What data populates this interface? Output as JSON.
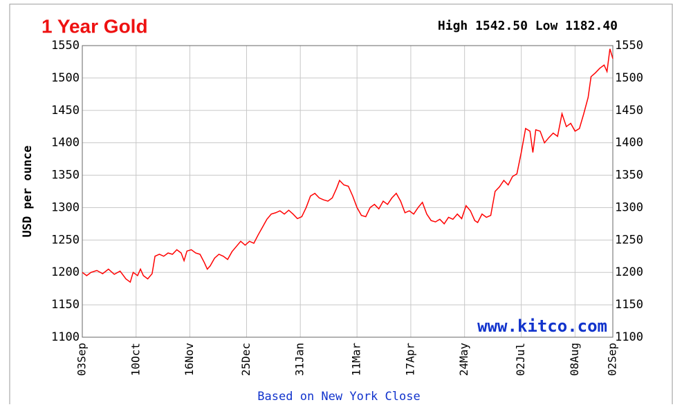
{
  "chart_data": {
    "type": "line",
    "title": "1 Year Gold",
    "stats": "High 1542.50 Low 1182.40",
    "ylabel": "USD per ounce",
    "watermark": "www.kitco.com",
    "xlabel": "Based on New York Close",
    "color": "#ff0000",
    "grid": true,
    "xlim": [
      0,
      365
    ],
    "ylim": [
      1100,
      1550
    ],
    "yticks": [
      1100,
      1150,
      1200,
      1250,
      1300,
      1350,
      1400,
      1450,
      1500,
      1550
    ],
    "xticks": [
      {
        "value": 0,
        "label": "03Sep"
      },
      {
        "value": 37,
        "label": "10Oct"
      },
      {
        "value": 74,
        "label": "16Nov"
      },
      {
        "value": 113,
        "label": "25Dec"
      },
      {
        "value": 150,
        "label": "31Jan"
      },
      {
        "value": 189,
        "label": "11Mar"
      },
      {
        "value": 226,
        "label": "17Apr"
      },
      {
        "value": 263,
        "label": "24May"
      },
      {
        "value": 302,
        "label": "02Jul"
      },
      {
        "value": 339,
        "label": "08Aug"
      },
      {
        "value": 365,
        "label": "02Sep"
      }
    ],
    "x": [
      0,
      3,
      6,
      10,
      14,
      18,
      22,
      26,
      30,
      33,
      35,
      38,
      40,
      42,
      45,
      48,
      50,
      53,
      56,
      59,
      62,
      65,
      68,
      70,
      72,
      75,
      78,
      81,
      84,
      86,
      88,
      91,
      94,
      97,
      100,
      103,
      106,
      109,
      112,
      115,
      118,
      121,
      124,
      127,
      130,
      133,
      136,
      139,
      142,
      145,
      148,
      151,
      154,
      157,
      160,
      163,
      166,
      169,
      172,
      175,
      177,
      180,
      183,
      186,
      189,
      192,
      195,
      198,
      201,
      204,
      207,
      210,
      213,
      216,
      219,
      222,
      225,
      228,
      231,
      234,
      237,
      240,
      243,
      246,
      249,
      252,
      255,
      258,
      261,
      264,
      267,
      270,
      272,
      275,
      278,
      281,
      284,
      287,
      290,
      293,
      296,
      299,
      302,
      305,
      308,
      310,
      312,
      315,
      318,
      321,
      324,
      327,
      330,
      333,
      336,
      339,
      342,
      345,
      348,
      350,
      353,
      356,
      359,
      361,
      363,
      365
    ],
    "values": [
      1200,
      1195,
      1200,
      1203,
      1198,
      1205,
      1197,
      1202,
      1190,
      1185,
      1200,
      1195,
      1205,
      1195,
      1190,
      1198,
      1225,
      1228,
      1225,
      1230,
      1228,
      1235,
      1230,
      1218,
      1233,
      1235,
      1230,
      1228,
      1215,
      1205,
      1210,
      1222,
      1228,
      1225,
      1220,
      1232,
      1240,
      1248,
      1242,
      1248,
      1245,
      1258,
      1270,
      1282,
      1290,
      1292,
      1295,
      1290,
      1296,
      1290,
      1283,
      1286,
      1300,
      1318,
      1322,
      1315,
      1312,
      1310,
      1315,
      1330,
      1342,
      1335,
      1333,
      1318,
      1300,
      1288,
      1286,
      1300,
      1305,
      1298,
      1310,
      1305,
      1315,
      1322,
      1310,
      1292,
      1295,
      1290,
      1300,
      1308,
      1290,
      1280,
      1278,
      1282,
      1275,
      1285,
      1282,
      1290,
      1283,
      1303,
      1295,
      1280,
      1277,
      1290,
      1285,
      1288,
      1325,
      1332,
      1342,
      1335,
      1348,
      1352,
      1385,
      1422,
      1418,
      1385,
      1420,
      1418,
      1400,
      1408,
      1415,
      1410,
      1445,
      1425,
      1430,
      1418,
      1422,
      1445,
      1470,
      1502,
      1508,
      1515,
      1520,
      1510,
      1545,
      1530
    ]
  }
}
